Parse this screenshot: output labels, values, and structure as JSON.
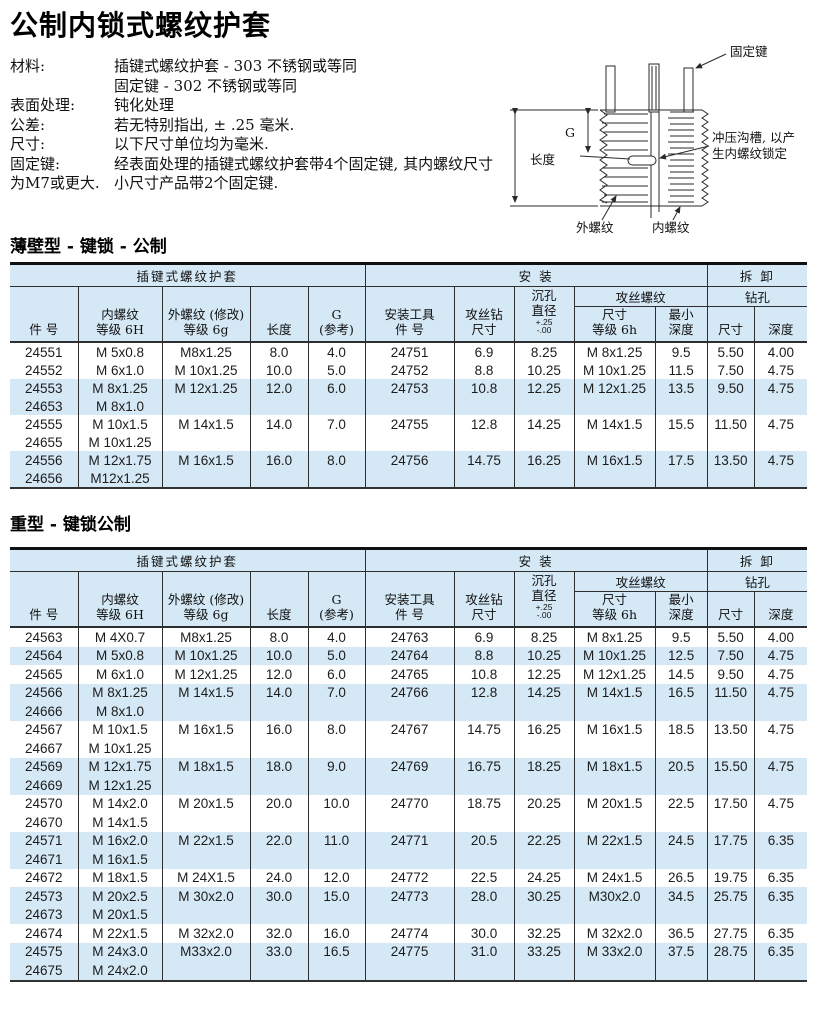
{
  "title": "公制内锁式螺纹护套",
  "colors": {
    "shade_blue": "#d5e8f5",
    "line": "#2e2e2e"
  },
  "info": [
    {
      "label": "材料:",
      "value": "插键式螺纹护套 - 303 不锈钢或等同"
    },
    {
      "label": "",
      "value": "固定键 - 302 不锈钢或等同"
    },
    {
      "label": "表面处理:",
      "value": "钝化处理"
    },
    {
      "label": "公差:",
      "value": "若无特别指出, ± .25 毫米."
    },
    {
      "label": "尺寸:",
      "value": "以下尺寸单位均为毫米."
    },
    {
      "label": "固定键:",
      "value": "经表面处理的插键式螺纹护套带4个固定键, 其内螺纹尺寸"
    },
    {
      "label": "为M7或更大.",
      "value": "小尺寸产品带2个固定键."
    }
  ],
  "diagram": {
    "label_key": "固定键",
    "label_length": "长度",
    "label_g": "G",
    "label_groove_1": "冲压沟槽, 以产",
    "label_groove_2": "生内螺纹锁定",
    "label_external": "外螺纹",
    "label_internal": "内螺纹"
  },
  "header": {
    "group_insert": "插键式螺纹护套",
    "group_install": "安  装",
    "group_removal": "拆  卸",
    "part_no": "件  号",
    "internal_1": "内螺纹",
    "internal_2": "等级 6H",
    "external_1": "外螺纹 (修改)",
    "external_2": "等级 6g",
    "length": "长度",
    "g_1": "G",
    "g_2": "(参考)",
    "tool_1": "安装工具",
    "tool_2": "件  号",
    "tapdrill_1": "攻丝钻",
    "tapdrill_2": "尺寸",
    "cbore_1": "沉孔",
    "cbore_2": "直径",
    "cbore_tol_plus": "+.25",
    "cbore_tol_minus": "-.00",
    "tap_thread_group": "攻丝螺纹",
    "tapsize_1": "尺寸",
    "tapsize_2": "等级 6h",
    "mindepth_1": "最小",
    "mindepth_2": "深度",
    "drill_group": "钻孔",
    "drill_size": "尺寸",
    "drill_depth": "深度"
  },
  "tables": [
    {
      "title": "薄壁型 - 键锁 - 公制",
      "rows": [
        {
          "shaded": false,
          "cells": [
            "24551",
            "M 5x0.8",
            "M8x1.25",
            "8.0",
            "4.0",
            "24751",
            "6.9",
            "8.25",
            "M 8x1.25",
            "9.5",
            "5.50",
            "4.00"
          ]
        },
        {
          "shaded": false,
          "cells": [
            "24552",
            "M 6x1.0",
            "M 10x1.25",
            "10.0",
            "5.0",
            "24752",
            "8.8",
            "10.25",
            "M 10x1.25",
            "11.5",
            "7.50",
            "4.75"
          ]
        },
        {
          "shaded": true,
          "cells": [
            "24553",
            "M 8x1.25",
            "M 12x1.25",
            "12.0",
            "6.0",
            "24753",
            "10.8",
            "12.25",
            "M 12x1.25",
            "13.5",
            "9.50",
            "4.75"
          ]
        },
        {
          "shaded": true,
          "cells": [
            "24653",
            "M 8x1.0",
            "",
            "",
            "",
            "",
            "",
            "",
            "",
            "",
            "",
            ""
          ]
        },
        {
          "shaded": false,
          "cells": [
            "24555",
            "M 10x1.5",
            "M 14x1.5",
            "14.0",
            "7.0",
            "24755",
            "12.8",
            "14.25",
            "M 14x1.5",
            "15.5",
            "11.50",
            "4.75"
          ]
        },
        {
          "shaded": false,
          "cells": [
            "24655",
            "M 10x1.25",
            "",
            "",
            "",
            "",
            "",
            "",
            "",
            "",
            "",
            ""
          ]
        },
        {
          "shaded": true,
          "cells": [
            "24556",
            "M 12x1.75",
            "M 16x1.5",
            "16.0",
            "8.0",
            "24756",
            "14.75",
            "16.25",
            "M 16x1.5",
            "17.5",
            "13.50",
            "4.75"
          ]
        },
        {
          "shaded": true,
          "cells": [
            "24656",
            "M12x1.25",
            "",
            "",
            "",
            "",
            "",
            "",
            "",
            "",
            "",
            ""
          ]
        }
      ]
    },
    {
      "title": "重型 - 键锁公制",
      "rows": [
        {
          "shaded": false,
          "cells": [
            "24563",
            "M 4X0.7",
            "M8x1.25",
            "8.0",
            "4.0",
            "24763",
            "6.9",
            "8.25",
            "M 8x1.25",
            "9.5",
            "5.50",
            "4.00"
          ]
        },
        {
          "shaded": true,
          "cells": [
            "24564",
            "M 5x0.8",
            "M 10x1.25",
            "10.0",
            "5.0",
            "24764",
            "8.8",
            "10.25",
            "M 10x1.25",
            "12.5",
            "7.50",
            "4.75"
          ]
        },
        {
          "shaded": false,
          "cells": [
            "24565",
            "M 6x1.0",
            "M 12x1.25",
            "12.0",
            "6.0",
            "24765",
            "10.8",
            "12.25",
            "M 12x1.25",
            "14.5",
            "9.50",
            "4.75"
          ]
        },
        {
          "shaded": true,
          "cells": [
            "24566",
            "M 8x1.25",
            "M 14x1.5",
            "14.0",
            "7.0",
            "24766",
            "12.8",
            "14.25",
            "M 14x1.5",
            "16.5",
            "11.50",
            "4.75"
          ]
        },
        {
          "shaded": true,
          "cells": [
            "24666",
            "M 8x1.0",
            "",
            "",
            "",
            "",
            "",
            "",
            "",
            "",
            "",
            ""
          ]
        },
        {
          "shaded": false,
          "cells": [
            "24567",
            "M 10x1.5",
            "M 16x1.5",
            "16.0",
            "8.0",
            "24767",
            "14.75",
            "16.25",
            "M 16x1.5",
            "18.5",
            "13.50",
            "4.75"
          ]
        },
        {
          "shaded": false,
          "cells": [
            "24667",
            "M 10x1.25",
            "",
            "",
            "",
            "",
            "",
            "",
            "",
            "",
            "",
            ""
          ]
        },
        {
          "shaded": true,
          "cells": [
            "24569",
            "M 12x1.75",
            "M 18x1.5",
            "18.0",
            "9.0",
            "24769",
            "16.75",
            "18.25",
            "M 18x1.5",
            "20.5",
            "15.50",
            "4.75"
          ]
        },
        {
          "shaded": true,
          "cells": [
            "24669",
            "M 12x1.25",
            "",
            "",
            "",
            "",
            "",
            "",
            "",
            "",
            "",
            ""
          ]
        },
        {
          "shaded": false,
          "cells": [
            "24570",
            "M 14x2.0",
            "M 20x1.5",
            "20.0",
            "10.0",
            "24770",
            "18.75",
            "20.25",
            "M 20x1.5",
            "22.5",
            "17.50",
            "4.75"
          ]
        },
        {
          "shaded": false,
          "cells": [
            "24670",
            "M 14x1.5",
            "",
            "",
            "",
            "",
            "",
            "",
            "",
            "",
            "",
            ""
          ]
        },
        {
          "shaded": true,
          "cells": [
            "24571",
            "M 16x2.0",
            "M 22x1.5",
            "22.0",
            "11.0",
            "24771",
            "20.5",
            "22.25",
            "M 22x1.5",
            "24.5",
            "17.75",
            "6.35"
          ]
        },
        {
          "shaded": true,
          "cells": [
            "24671",
            "M 16x1.5",
            "",
            "",
            "",
            "",
            "",
            "",
            "",
            "",
            "",
            ""
          ]
        },
        {
          "shaded": false,
          "cells": [
            "24672",
            "M 18x1.5",
            "M 24X1.5",
            "24.0",
            "12.0",
            "24772",
            "22.5",
            "24.25",
            "M 24x1.5",
            "26.5",
            "19.75",
            "6.35"
          ]
        },
        {
          "shaded": true,
          "cells": [
            "24573",
            "M 20x2.5",
            "M 30x2.0",
            "30.0",
            "15.0",
            "24773",
            "28.0",
            "30.25",
            "M30x2.0",
            "34.5",
            "25.75",
            "6.35"
          ]
        },
        {
          "shaded": true,
          "cells": [
            "24673",
            "M 20x1.5",
            "",
            "",
            "",
            "",
            "",
            "",
            "",
            "",
            "",
            ""
          ]
        },
        {
          "shaded": false,
          "cells": [
            "24674",
            "M 22x1.5",
            "M 32x2.0",
            "32.0",
            "16.0",
            "24774",
            "30.0",
            "32.25",
            "M 32x2.0",
            "36.5",
            "27.75",
            "6.35"
          ]
        },
        {
          "shaded": true,
          "cells": [
            "24575",
            "M 24x3.0",
            "M33x2.0",
            "33.0",
            "16.5",
            "24775",
            "31.0",
            "33.25",
            "M 33x2.0",
            "37.5",
            "28.75",
            "6.35"
          ]
        },
        {
          "shaded": true,
          "cells": [
            "24675",
            "M 24x2.0",
            "",
            "",
            "",
            "",
            "",
            "",
            "",
            "",
            "",
            ""
          ]
        }
      ]
    }
  ]
}
